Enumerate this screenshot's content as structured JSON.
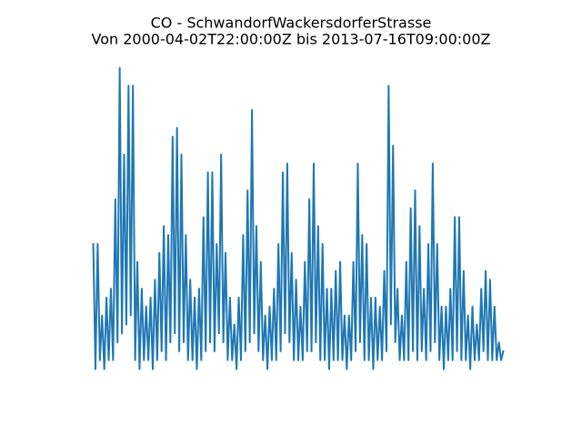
{
  "chart_data": {
    "type": "line",
    "title": "CO - SchwandorfWackersdorferStrasse",
    "subtitle": "Von 2000-04-02T22:00:00Z bis 2013-07-16T09:00:00Z",
    "color": "#1f77b4",
    "values": [
      1.4,
      0.0,
      1.4,
      0.1,
      0.6,
      0.0,
      0.8,
      0.1,
      0.9,
      0.1,
      1.9,
      0.3,
      3.37,
      0.4,
      2.4,
      0.5,
      3.17,
      0.6,
      3.17,
      0.1,
      1.2,
      0.0,
      0.9,
      0.1,
      0.7,
      0.1,
      0.8,
      0.0,
      1.0,
      0.1,
      1.3,
      0.2,
      1.6,
      0.1,
      1.5,
      0.3,
      2.6,
      0.4,
      2.7,
      0.2,
      2.4,
      0.3,
      1.5,
      0.1,
      1.0,
      0.1,
      0.8,
      0.0,
      0.9,
      0.1,
      1.7,
      0.2,
      2.2,
      0.3,
      2.2,
      0.2,
      1.4,
      0.4,
      2.4,
      0.3,
      1.3,
      0.1,
      0.8,
      0.1,
      0.5,
      0.0,
      0.8,
      0.1,
      1.5,
      0.2,
      2.0,
      0.3,
      2.9,
      0.4,
      1.6,
      0.2,
      1.2,
      0.1,
      0.6,
      0.0,
      0.7,
      0.1,
      0.9,
      0.1,
      1.4,
      0.2,
      2.2,
      0.4,
      2.3,
      0.3,
      1.3,
      0.1,
      1.0,
      0.1,
      0.7,
      0.1,
      1.2,
      0.2,
      1.9,
      0.2,
      2.3,
      0.3,
      1.6,
      0.1,
      1.4,
      0.1,
      0.9,
      0.0,
      0.9,
      0.1,
      1.1,
      0.1,
      1.2,
      0.1,
      0.6,
      0.0,
      0.6,
      0.1,
      1.2,
      0.2,
      2.3,
      0.3,
      1.5,
      0.1,
      1.4,
      0.1,
      0.8,
      0.0,
      0.8,
      0.1,
      0.7,
      0.1,
      1.1,
      0.2,
      3.17,
      0.5,
      2.5,
      0.3,
      0.9,
      0.1,
      0.6,
      0.1,
      1.2,
      0.1,
      1.8,
      0.2,
      2.0,
      0.1,
      1.6,
      0.2,
      0.9,
      0.1,
      1.4,
      0.2,
      2.3,
      0.3,
      1.4,
      0.1,
      0.7,
      0.0,
      0.7,
      0.1,
      0.9,
      0.1,
      1.7,
      0.2,
      1.7,
      0.1,
      1.1,
      0.1,
      0.6,
      0.0,
      0.7,
      0.1,
      0.5,
      0.1,
      0.9,
      0.2,
      1.1,
      0.1,
      1.0,
      0.1,
      0.7,
      0.1,
      0.3,
      0.1,
      0.2
    ]
  }
}
